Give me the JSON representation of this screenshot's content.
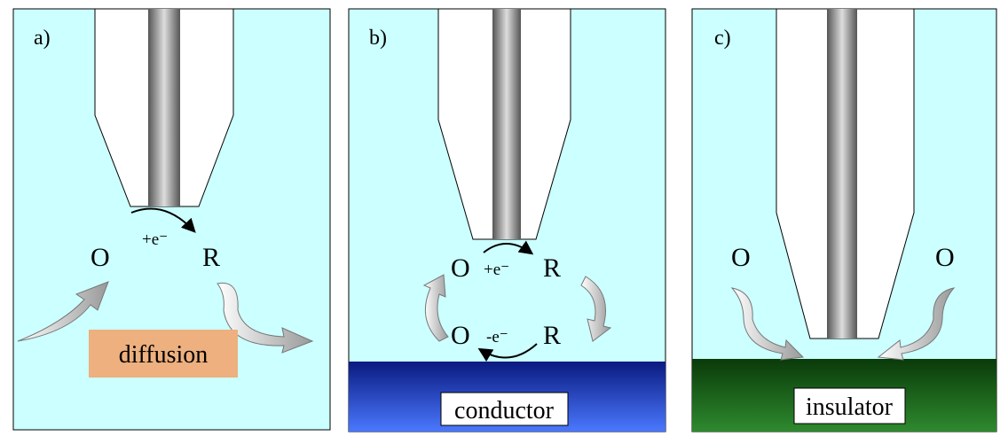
{
  "panels": [
    {
      "label": "a)",
      "texts": [
        "O",
        "+e⁻",
        "R"
      ],
      "box": "diffusion"
    },
    {
      "label": "b)",
      "texts": [
        "O",
        "+e⁻",
        "R",
        "O",
        "-e⁻",
        "R"
      ],
      "box": "conductor"
    },
    {
      "label": "c)",
      "texts": [
        "O",
        "O"
      ],
      "box": "insulator"
    }
  ]
}
